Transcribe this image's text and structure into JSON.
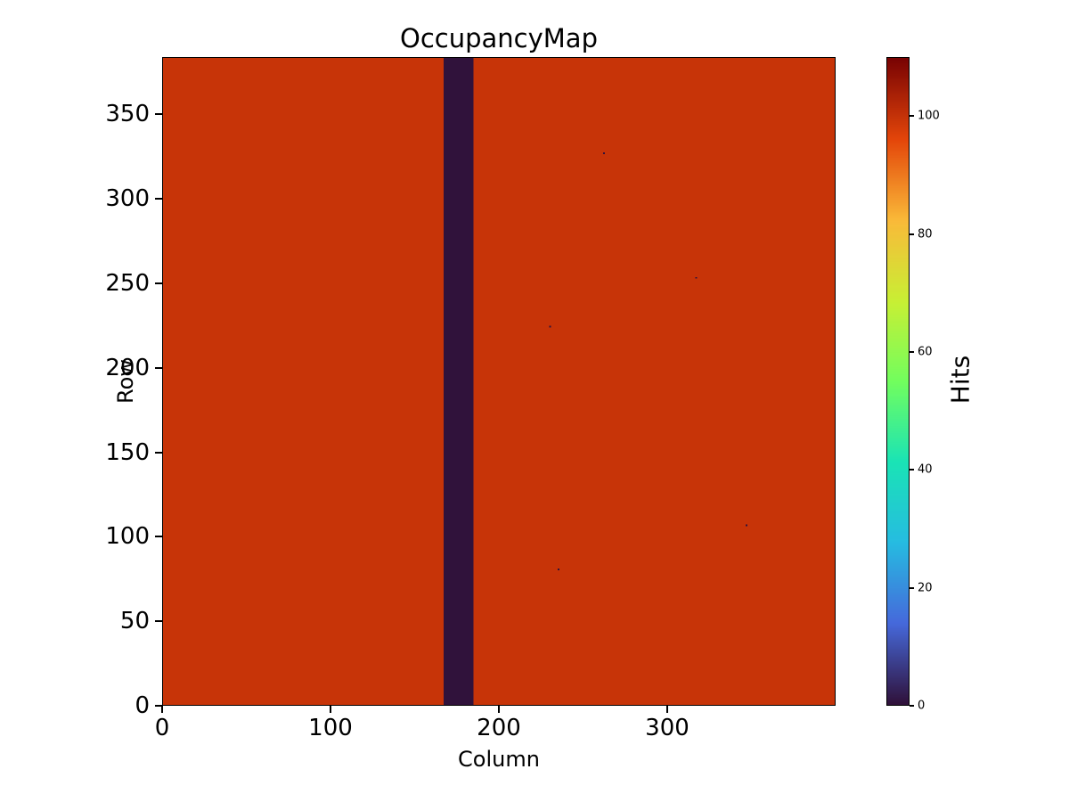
{
  "figure": {
    "background_color": "#ffffff",
    "text_color": "#000000",
    "frame_color": "#000000"
  },
  "chart_data": {
    "type": "heatmap",
    "title": "OccupancyMap",
    "xlabel": "Column",
    "ylabel": "Row",
    "colorbar_label": "Hits",
    "n_cols": 400,
    "n_rows": 384,
    "xlim": [
      0,
      400
    ],
    "ylim": [
      0,
      384
    ],
    "x_ticks": [
      0,
      100,
      200,
      300
    ],
    "y_ticks": [
      0,
      50,
      100,
      150,
      200,
      250,
      300,
      350
    ],
    "colorbar_ticks": [
      0,
      20,
      40,
      60,
      80,
      100
    ],
    "vmin": 0,
    "vmax": 110,
    "background_value": 100,
    "dead_column_band": {
      "col_start": 167,
      "col_end": 184,
      "value": 0
    },
    "dead_pixels": [
      {
        "col": 262,
        "row": 327,
        "value": 0
      },
      {
        "col": 230,
        "row": 224,
        "value": 0
      },
      {
        "col": 235,
        "row": 80,
        "value": 0
      },
      {
        "col": 347,
        "row": 106,
        "value": 0
      },
      {
        "col": 317,
        "row": 253,
        "value": 0
      }
    ],
    "colormap": "turbo",
    "colormap_stops": [
      {
        "t": 0.0,
        "color": "#30123b"
      },
      {
        "t": 0.125,
        "color": "#4669db"
      },
      {
        "t": 0.25,
        "color": "#26bce1"
      },
      {
        "t": 0.375,
        "color": "#1ae4b6"
      },
      {
        "t": 0.5,
        "color": "#72fe5e"
      },
      {
        "t": 0.625,
        "color": "#c9ef34"
      },
      {
        "t": 0.75,
        "color": "#faba39"
      },
      {
        "t": 0.875,
        "color": "#e4460a"
      },
      {
        "t": 1.0,
        "color": "#7a0403"
      }
    ],
    "grid": false,
    "legend": "none"
  }
}
